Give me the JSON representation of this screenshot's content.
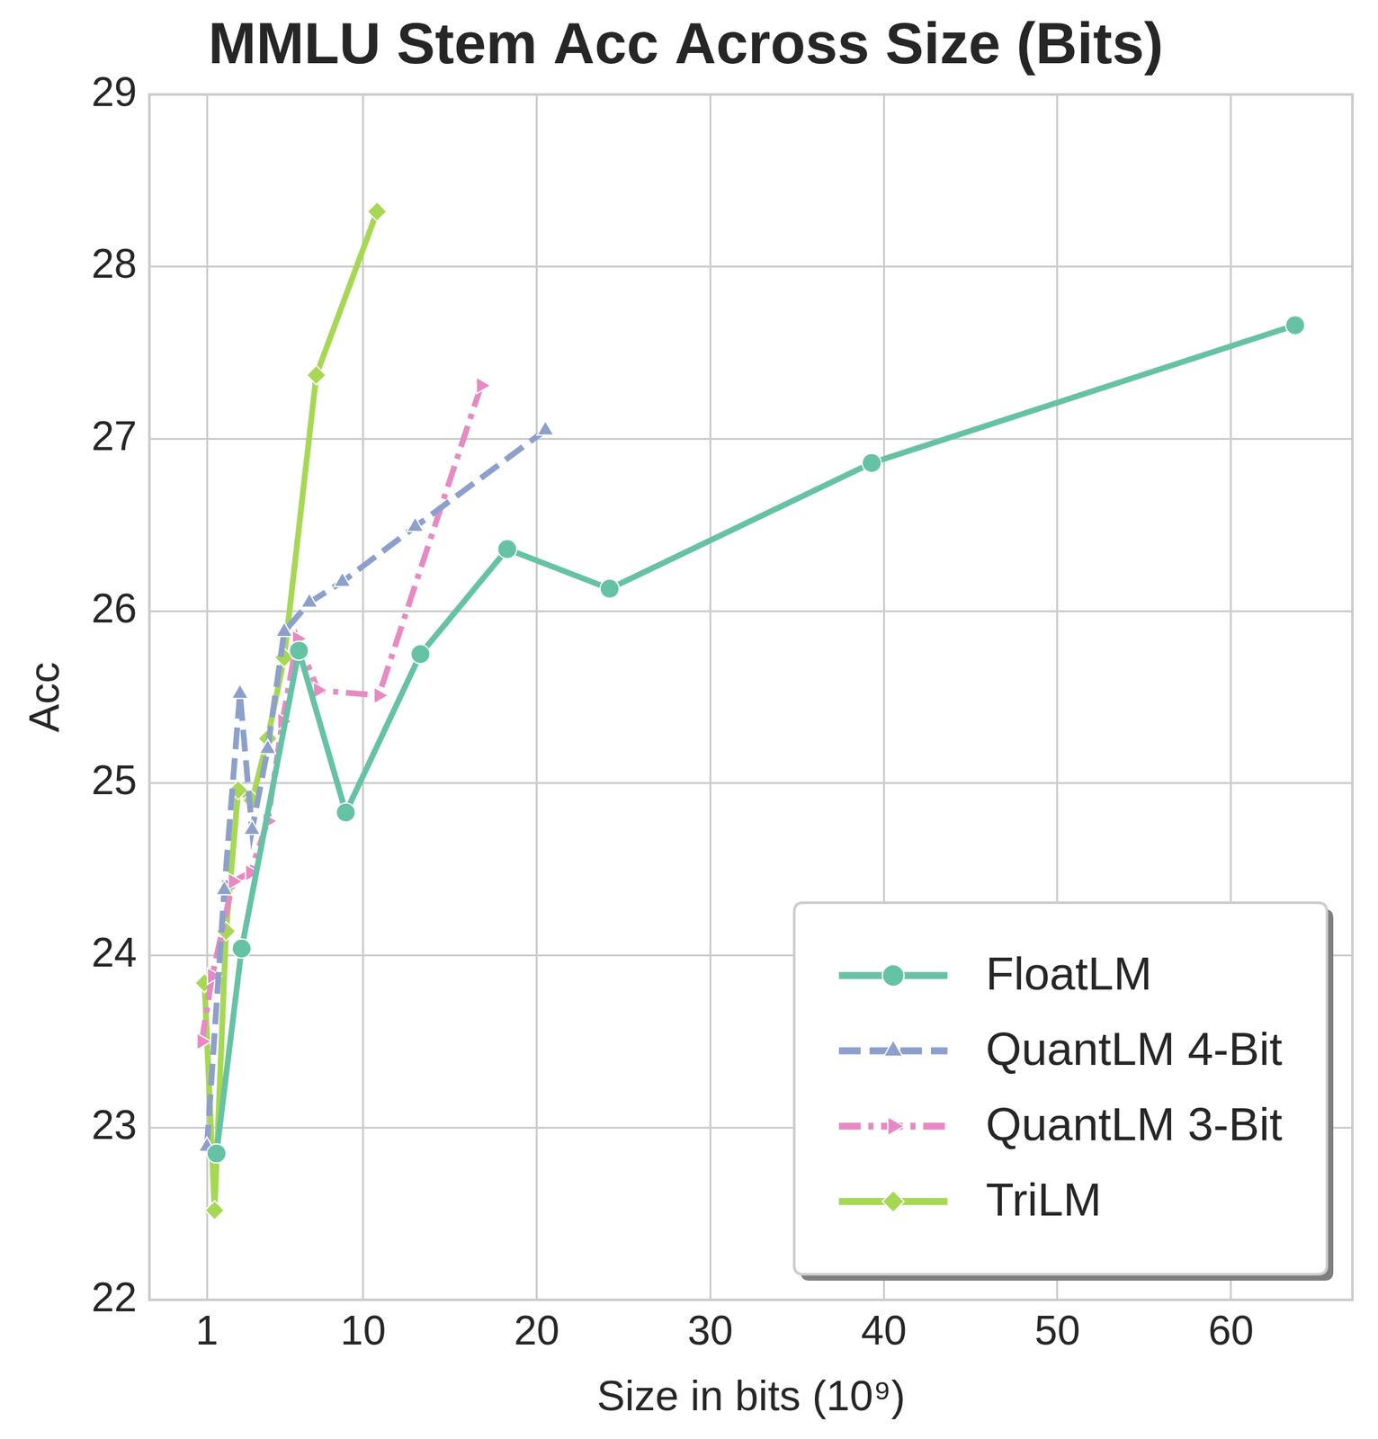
{
  "chart_data": {
    "type": "line",
    "title": "MMLU Stem Acc Across Size (Bits)",
    "x_label": "Size in bits (10⁹)",
    "y_label": "Acc",
    "xlim": [
      -2.3,
      67
    ],
    "xticks": [
      1,
      10,
      20,
      30,
      40,
      50,
      60
    ],
    "ylim": [
      22,
      29
    ],
    "yticks": [
      22,
      23,
      24,
      25,
      26,
      27,
      28,
      29
    ],
    "grid": true,
    "legend": "lower right",
    "series": [
      {
        "name": "FloatLM",
        "color": "#66c2a5",
        "marker": "circle",
        "line_style": "solid",
        "x": [
          1.55,
          3.0,
          6.3,
          9.0,
          13.3,
          18.3,
          24.2,
          39.3,
          63.7
        ],
        "values": [
          22.85,
          24.04,
          25.77,
          24.83,
          25.75,
          26.36,
          26.13,
          26.86,
          27.66
        ]
      },
      {
        "name": "QuantLM 4-Bit",
        "color": "#8da0cb",
        "marker": "triangle",
        "line_style": "dashed",
        "x": [
          1.0,
          2.0,
          2.9,
          3.6,
          4.5,
          5.45,
          6.9,
          8.8,
          13.0,
          20.5
        ],
        "values": [
          22.89,
          24.38,
          25.52,
          24.73,
          25.2,
          25.88,
          26.05,
          26.17,
          26.49,
          27.05
        ]
      },
      {
        "name": "QuantLM 3-Bit",
        "color": "#e78ac3",
        "marker": "triangle_right",
        "line_style": "dashdot",
        "x": [
          0.7,
          1.3,
          2.5,
          3.5,
          4.5,
          5.35,
          6.2,
          7.4,
          10.9,
          16.8
        ],
        "values": [
          23.5,
          23.88,
          24.43,
          24.48,
          24.78,
          25.36,
          25.84,
          25.54,
          25.51,
          27.31
        ]
      },
      {
        "name": "TriLM",
        "color": "#a6d854",
        "marker": "diamond",
        "line_style": "solid",
        "x": [
          0.86,
          1.44,
          2.1,
          2.8,
          3.6,
          4.5,
          5.45,
          7.3,
          10.8
        ],
        "values": [
          23.84,
          22.52,
          24.14,
          24.96,
          24.9,
          25.26,
          25.73,
          27.37,
          28.32
        ]
      }
    ]
  }
}
